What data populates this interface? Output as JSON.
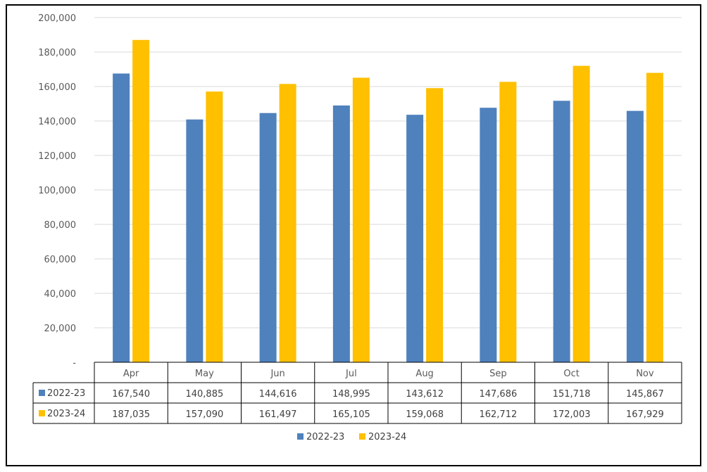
{
  "chart_data": {
    "type": "bar",
    "categories": [
      "Apr",
      "May",
      "Jun",
      "Jul",
      "Aug",
      "Sep",
      "Oct",
      "Nov"
    ],
    "series": [
      {
        "name": "2022-23",
        "color": "#4F81BD",
        "values": [
          167540,
          140885,
          144616,
          148995,
          143612,
          147686,
          151718,
          145867
        ],
        "labels": [
          "167,540",
          "140,885",
          "144,616",
          "148,995",
          "143,612",
          "147,686",
          "151,718",
          "145,867"
        ]
      },
      {
        "name": "2023-24",
        "color": "#FFC000",
        "values": [
          187035,
          157090,
          161497,
          165105,
          159068,
          162712,
          172003,
          167929
        ],
        "labels": [
          "187,035",
          "157,090",
          "161,497",
          "165,105",
          "159,068",
          "162,712",
          "172,003",
          "167,929"
        ]
      }
    ],
    "ylim": [
      0,
      200000
    ],
    "yticks": [
      0,
      20000,
      40000,
      60000,
      80000,
      100000,
      120000,
      140000,
      160000,
      180000,
      200000
    ],
    "ytick_labels": [
      "-",
      "20,000",
      "40,000",
      "60,000",
      "80,000",
      "100,000",
      "120,000",
      "140,000",
      "160,000",
      "180,000",
      "200,000"
    ],
    "grid": true,
    "data_table": true,
    "legend_position": "bottom"
  }
}
